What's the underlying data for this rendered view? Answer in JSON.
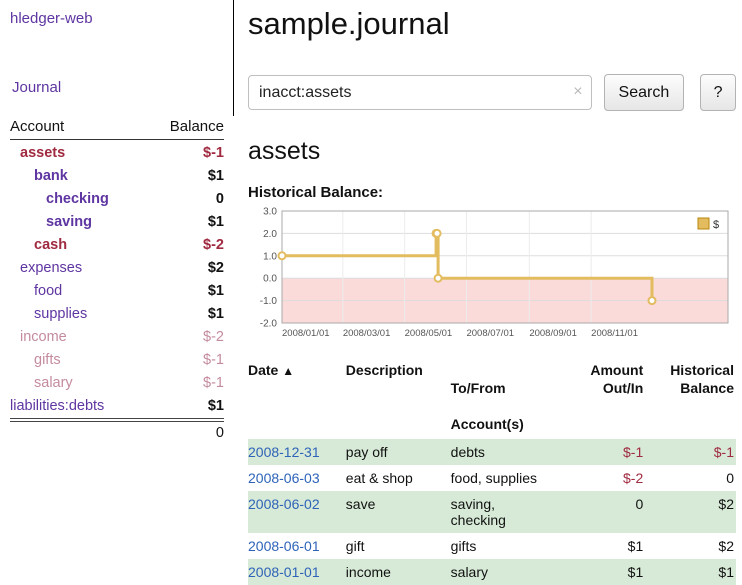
{
  "colors": {
    "link-purple": "#5e35a1",
    "negative-red": "#a02a40",
    "faded-rose": "#c48b9f",
    "date-blue": "#2e63b8",
    "row-green": "#d7ead7",
    "chart-line": "#e3bc5f",
    "chart-negative-bg": "#fbdada"
  },
  "app": {
    "title": "hledger-web",
    "journal_link": "Journal"
  },
  "sidebar": {
    "header": {
      "account": "Account",
      "balance": "Balance"
    },
    "accounts": [
      {
        "name": "assets",
        "balance": "$-1"
      },
      {
        "name": "bank",
        "balance": "$1"
      },
      {
        "name": "checking",
        "balance": "0"
      },
      {
        "name": "saving",
        "balance": "$1"
      },
      {
        "name": "cash",
        "balance": "$-2"
      },
      {
        "name": "expenses",
        "balance": "$2"
      },
      {
        "name": "food",
        "balance": "$1"
      },
      {
        "name": "supplies",
        "balance": "$1"
      },
      {
        "name": "income",
        "balance": "$-2"
      },
      {
        "name": "gifts",
        "balance": "$-1"
      },
      {
        "name": "salary",
        "balance": "$-1"
      },
      {
        "name": "liabilities:debts",
        "balance": "$1"
      }
    ],
    "total": "0"
  },
  "main": {
    "title": "sample.journal",
    "search": {
      "value": "inacct:assets",
      "clear_icon": "×",
      "button_label": "Search",
      "help_label": "?"
    },
    "section_title": "assets",
    "chart_label": "Historical Balance:"
  },
  "chart_data": {
    "type": "line",
    "step": true,
    "title": "Historical Balance:",
    "legend_label": "$",
    "legend_position": "top-right",
    "grid": true,
    "ylim": [
      -2,
      3
    ],
    "y_ticks": [
      3.0,
      2.0,
      1.0,
      0.0,
      -1.0,
      -2.0
    ],
    "x_tick_labels": [
      "2008/01/01",
      "2008/03/01",
      "2008/05/01",
      "2008/07/01",
      "2008/09/01",
      "2008/11/01"
    ],
    "x_tick_days": [
      0,
      60,
      121,
      182,
      244,
      305
    ],
    "x_domain_days": [
      0,
      440
    ],
    "series": [
      {
        "name": "$",
        "dates": [
          "2008-01-01",
          "2008-06-01",
          "2008-06-02",
          "2008-06-03",
          "2008-12-31"
        ],
        "days": [
          0,
          152,
          153,
          154,
          365
        ],
        "values": [
          1,
          2,
          2,
          0,
          -1
        ]
      }
    ]
  },
  "table": {
    "columns": [
      {
        "line1": "Date",
        "sort": "▲",
        "line2": ""
      },
      {
        "line1": "Description",
        "line2": ""
      },
      {
        "line1": "To/From",
        "line2": "Account(s)"
      },
      {
        "line1": "Amount",
        "line2": "Out/In"
      },
      {
        "line1": "Historical",
        "line2": "Balance"
      }
    ],
    "rows": [
      {
        "date": "2008-12-31",
        "description": "pay off",
        "accounts": "debts",
        "amount": "$-1",
        "balance": "$-1"
      },
      {
        "date": "2008-06-03",
        "description": "eat & shop",
        "accounts": "food, supplies",
        "amount": "$-2",
        "balance": "0"
      },
      {
        "date": "2008-06-02",
        "description": "save",
        "accounts": "saving,\nchecking",
        "amount": "0",
        "balance": "$2"
      },
      {
        "date": "2008-06-01",
        "description": "gift",
        "accounts": "gifts",
        "amount": "$1",
        "balance": "$2"
      },
      {
        "date": "2008-01-01",
        "description": "income",
        "accounts": "salary",
        "amount": "$1",
        "balance": "$1"
      }
    ]
  }
}
